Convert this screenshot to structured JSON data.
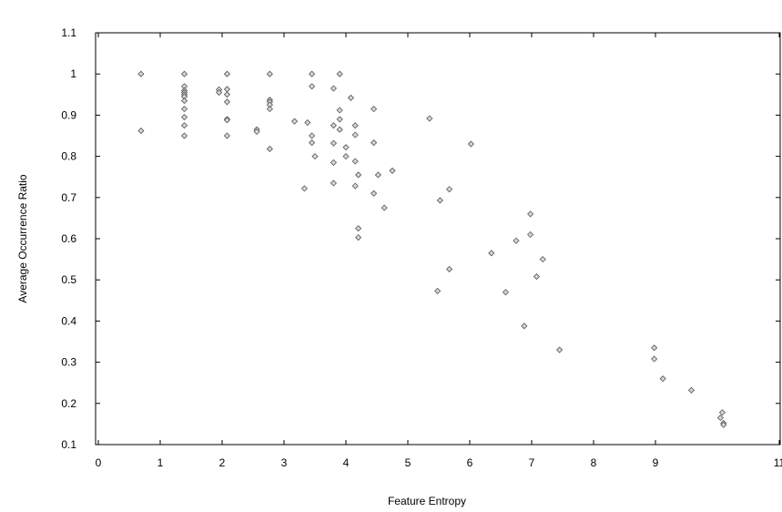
{
  "chart_data": {
    "type": "scatter",
    "title": "",
    "xlabel": "Feature Entropy",
    "ylabel": "Average Occurrence Ratio",
    "xlim": [
      0,
      11
    ],
    "ylim": [
      0.1,
      1.1
    ],
    "x_ticks": [
      "0",
      "1",
      "2",
      "3",
      "4",
      "5",
      "6",
      "7",
      "8",
      "9",
      "11"
    ],
    "y_ticks": [
      "0.1",
      "0.2",
      "0.3",
      "0.4",
      "0.5",
      "0.6",
      "0.7",
      "0.8",
      "0.9",
      "1",
      "1.1"
    ],
    "grid": false,
    "legend": "none",
    "marker": "diamond",
    "marker_color": "#d6d6d6",
    "series": [
      {
        "points": [
          [
            0.69,
            1.0
          ],
          [
            0.69,
            0.862
          ],
          [
            1.39,
            1.0
          ],
          [
            1.39,
            0.97
          ],
          [
            1.39,
            0.96
          ],
          [
            1.39,
            0.955
          ],
          [
            1.39,
            0.95
          ],
          [
            1.39,
            0.945
          ],
          [
            1.39,
            0.935
          ],
          [
            1.39,
            0.915
          ],
          [
            1.39,
            0.895
          ],
          [
            1.39,
            0.875
          ],
          [
            1.39,
            0.85
          ],
          [
            1.95,
            0.962
          ],
          [
            1.95,
            0.955
          ],
          [
            2.08,
            1.0
          ],
          [
            2.08,
            0.963
          ],
          [
            2.08,
            0.95
          ],
          [
            2.08,
            0.932
          ],
          [
            2.08,
            0.89
          ],
          [
            2.08,
            0.888
          ],
          [
            2.08,
            0.85
          ],
          [
            2.56,
            0.865
          ],
          [
            2.56,
            0.86
          ],
          [
            2.77,
            1.0
          ],
          [
            2.77,
            0.937
          ],
          [
            2.77,
            0.932
          ],
          [
            2.77,
            0.925
          ],
          [
            2.77,
            0.915
          ],
          [
            2.77,
            0.818
          ],
          [
            3.17,
            0.885
          ],
          [
            3.33,
            0.722
          ],
          [
            3.38,
            0.882
          ],
          [
            3.45,
            1.0
          ],
          [
            3.45,
            0.97
          ],
          [
            3.45,
            0.85
          ],
          [
            3.45,
            0.833
          ],
          [
            3.5,
            0.8
          ],
          [
            3.8,
            0.965
          ],
          [
            3.8,
            0.875
          ],
          [
            3.8,
            0.832
          ],
          [
            3.8,
            0.785
          ],
          [
            3.8,
            0.735
          ],
          [
            3.9,
            1.0
          ],
          [
            3.9,
            0.912
          ],
          [
            3.9,
            0.89
          ],
          [
            3.9,
            0.865
          ],
          [
            4.0,
            0.822
          ],
          [
            4.0,
            0.8
          ],
          [
            4.08,
            0.942
          ],
          [
            4.15,
            0.875
          ],
          [
            4.15,
            0.852
          ],
          [
            4.15,
            0.788
          ],
          [
            4.15,
            0.728
          ],
          [
            4.2,
            0.755
          ],
          [
            4.2,
            0.625
          ],
          [
            4.2,
            0.603
          ],
          [
            4.45,
            0.915
          ],
          [
            4.45,
            0.833
          ],
          [
            4.45,
            0.71
          ],
          [
            4.52,
            0.755
          ],
          [
            4.62,
            0.675
          ],
          [
            4.75,
            0.765
          ],
          [
            5.35,
            0.892
          ],
          [
            5.48,
            0.473
          ],
          [
            5.52,
            0.693
          ],
          [
            5.67,
            0.72
          ],
          [
            5.67,
            0.526
          ],
          [
            6.02,
            0.83
          ],
          [
            6.35,
            0.565
          ],
          [
            6.58,
            0.47
          ],
          [
            6.75,
            0.595
          ],
          [
            6.88,
            0.388
          ],
          [
            6.98,
            0.66
          ],
          [
            6.98,
            0.61
          ],
          [
            7.08,
            0.508
          ],
          [
            7.18,
            0.55
          ],
          [
            7.45,
            0.33
          ],
          [
            8.98,
            0.335
          ],
          [
            8.98,
            0.308
          ],
          [
            9.12,
            0.26
          ],
          [
            9.58,
            0.232
          ],
          [
            10.05,
            0.165
          ],
          [
            10.08,
            0.178
          ],
          [
            10.1,
            0.152
          ],
          [
            10.1,
            0.148
          ]
        ]
      }
    ]
  }
}
